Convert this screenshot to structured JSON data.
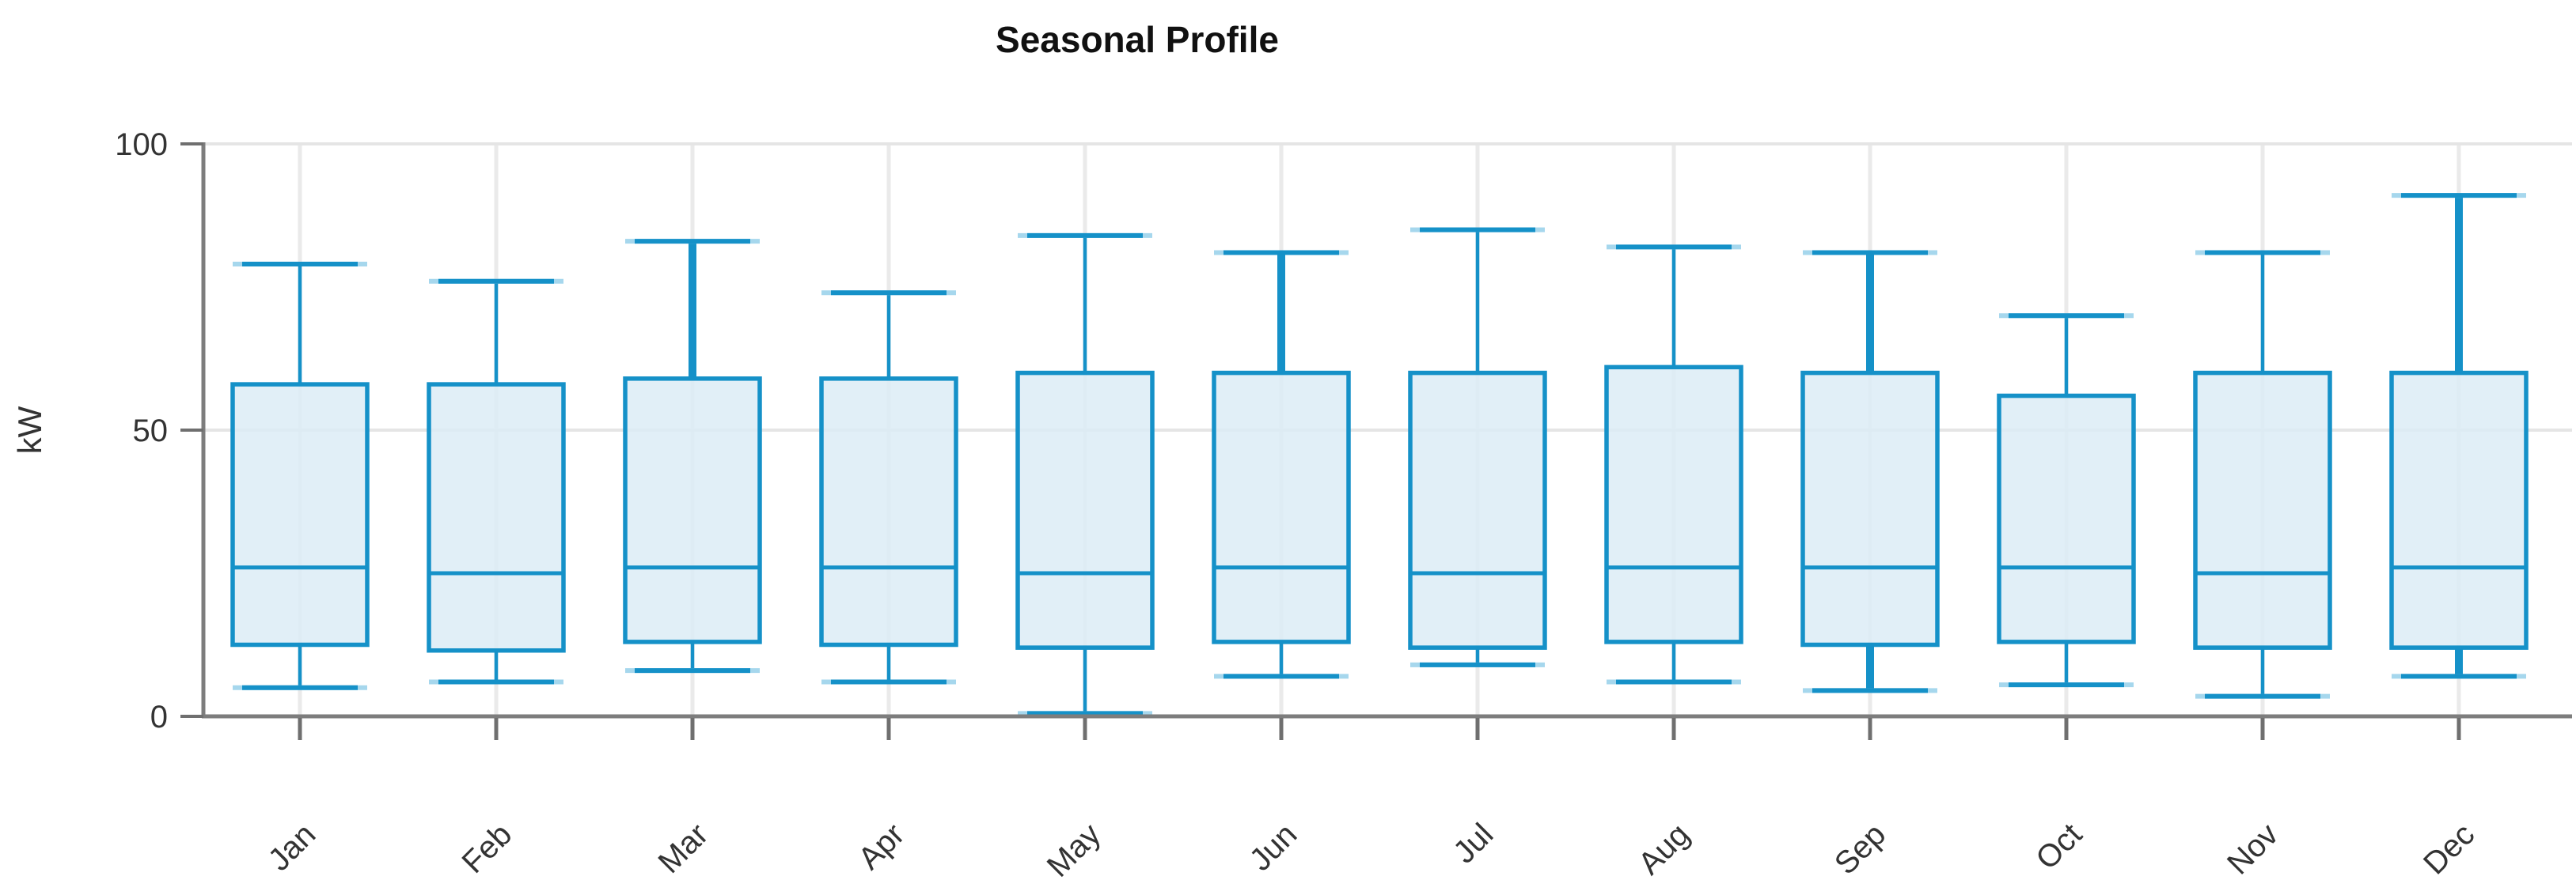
{
  "title": "Seasonal Profile",
  "y_axis": {
    "label": "kW",
    "ticks": [
      0,
      50,
      100
    ],
    "range": [
      0,
      100
    ]
  },
  "x_axis": {
    "categories": [
      "Jan",
      "Feb",
      "Mar",
      "Apr",
      "May",
      "Jun",
      "Jul",
      "Aug",
      "Sep",
      "Oct",
      "Nov",
      "Dec"
    ]
  },
  "colors": {
    "box_stroke": "#1591c8",
    "box_fill": "#dcecf6",
    "cap_tip": "#a6d7ed",
    "grid_horizontal": "#e5e5e5",
    "grid_vertical": "#eaeaea",
    "spine": "#7d7d7d",
    "tick": "#6f6f6f",
    "text": "#333333",
    "title_text": "#111111"
  },
  "chart_data": {
    "type": "box",
    "title": "Seasonal Profile",
    "xlabel": "",
    "ylabel": "kW",
    "ylim": [
      0,
      100
    ],
    "yticks": [
      0,
      50,
      100
    ],
    "grid": true,
    "legend": false,
    "categories": [
      "Jan",
      "Feb",
      "Mar",
      "Apr",
      "May",
      "Jun",
      "Jul",
      "Aug",
      "Sep",
      "Oct",
      "Nov",
      "Dec"
    ],
    "boxes": [
      {
        "month": "Jan",
        "low": 5,
        "q1": 12.5,
        "median": 26,
        "q3": 58,
        "high": 79,
        "thick_upper_whisker": false,
        "thick_lower_whisker": false
      },
      {
        "month": "Feb",
        "low": 6,
        "q1": 11.5,
        "median": 25,
        "q3": 58,
        "high": 76,
        "thick_upper_whisker": false,
        "thick_lower_whisker": false
      },
      {
        "month": "Mar",
        "low": 8,
        "q1": 13,
        "median": 26,
        "q3": 59,
        "high": 83,
        "thick_upper_whisker": true,
        "thick_lower_whisker": false
      },
      {
        "month": "Apr",
        "low": 6,
        "q1": 12.5,
        "median": 26,
        "q3": 59,
        "high": 74,
        "thick_upper_whisker": false,
        "thick_lower_whisker": false
      },
      {
        "month": "May",
        "low": 0.5,
        "q1": 12,
        "median": 25,
        "q3": 60,
        "high": 84,
        "thick_upper_whisker": false,
        "thick_lower_whisker": false
      },
      {
        "month": "Jun",
        "low": 7,
        "q1": 13,
        "median": 26,
        "q3": 60,
        "high": 81,
        "thick_upper_whisker": true,
        "thick_lower_whisker": false
      },
      {
        "month": "Jul",
        "low": 9,
        "q1": 12,
        "median": 25,
        "q3": 60,
        "high": 85,
        "thick_upper_whisker": false,
        "thick_lower_whisker": false
      },
      {
        "month": "Aug",
        "low": 6,
        "q1": 13,
        "median": 26,
        "q3": 61,
        "high": 82,
        "thick_upper_whisker": false,
        "thick_lower_whisker": false
      },
      {
        "month": "Sep",
        "low": 4.5,
        "q1": 12.5,
        "median": 26,
        "q3": 60,
        "high": 81,
        "thick_upper_whisker": true,
        "thick_lower_whisker": true
      },
      {
        "month": "Oct",
        "low": 5.5,
        "q1": 13,
        "median": 26,
        "q3": 56,
        "high": 70,
        "thick_upper_whisker": false,
        "thick_lower_whisker": false
      },
      {
        "month": "Nov",
        "low": 3.5,
        "q1": 12,
        "median": 25,
        "q3": 60,
        "high": 81,
        "thick_upper_whisker": false,
        "thick_lower_whisker": false
      },
      {
        "month": "Dec",
        "low": 7,
        "q1": 12,
        "median": 26,
        "q3": 60,
        "high": 91,
        "thick_upper_whisker": true,
        "thick_lower_whisker": true
      }
    ]
  }
}
